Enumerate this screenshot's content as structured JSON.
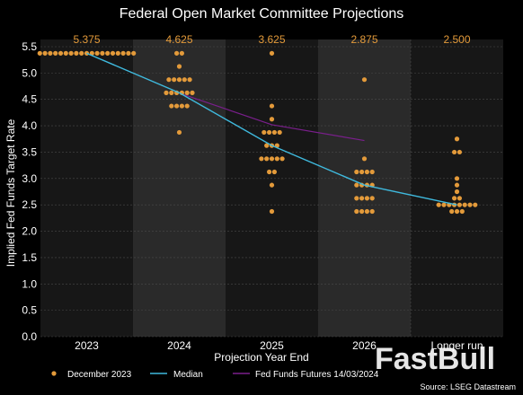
{
  "colors": {
    "background": "#000000",
    "band_dark": "#171717",
    "band_light": "#2a2a2a",
    "grid": "#4a4a4a",
    "dots": "#e39a3a",
    "median": "#3fb9dd",
    "futures": "#7a1f8c",
    "text": "#ffffff"
  },
  "watermark": "FastBull",
  "source": "Source: LSEG Datastream",
  "chart_data": {
    "type": "scatter",
    "title": "Federal Open Market Committee Projections",
    "xlabel": "Projection Year End",
    "ylabel": "Implied Fed Funds Target Rate",
    "categories": [
      "2023",
      "2024",
      "2025",
      "2026",
      "Longer run"
    ],
    "ylim": [
      0,
      5.5
    ],
    "yticks": [
      "0.0",
      "0.5",
      "1.0",
      "1.5",
      "2.0",
      "2.5",
      "3.0",
      "3.5",
      "4.0",
      "4.5",
      "5.0",
      "5.5"
    ],
    "grid": true,
    "median_labels": [
      "5.375",
      "4.625",
      "3.625",
      "2.875",
      "2.500"
    ],
    "dots": [
      {
        "category": "2023",
        "rates": [
          [
            5.375,
            19
          ]
        ]
      },
      {
        "category": "2024",
        "rates": [
          [
            5.375,
            2
          ],
          [
            5.125,
            1
          ],
          [
            4.875,
            5
          ],
          [
            4.625,
            6
          ],
          [
            4.375,
            4
          ],
          [
            3.875,
            1
          ]
        ]
      },
      {
        "category": "2025",
        "rates": [
          [
            5.375,
            1
          ],
          [
            4.375,
            1
          ],
          [
            4.125,
            1
          ],
          [
            3.875,
            4
          ],
          [
            3.625,
            3
          ],
          [
            3.375,
            5
          ],
          [
            3.125,
            2
          ],
          [
            2.875,
            1
          ],
          [
            2.375,
            1
          ]
        ]
      },
      {
        "category": "2026",
        "rates": [
          [
            4.875,
            1
          ],
          [
            3.375,
            1
          ],
          [
            3.125,
            4
          ],
          [
            2.875,
            4
          ],
          [
            2.625,
            4
          ],
          [
            2.375,
            4
          ]
        ]
      },
      {
        "category": "Longer run",
        "rates": [
          [
            3.75,
            1
          ],
          [
            3.5,
            2
          ],
          [
            3.0,
            1
          ],
          [
            2.875,
            1
          ],
          [
            2.75,
            1
          ],
          [
            2.625,
            2
          ],
          [
            2.5,
            8
          ],
          [
            2.375,
            3
          ]
        ]
      }
    ],
    "series": [
      {
        "name": "December 2023",
        "type": "dots"
      },
      {
        "name": "Median",
        "type": "line",
        "points": [
          {
            "x": "2023",
            "y": 5.375
          },
          {
            "x": "2024",
            "y": 4.625
          },
          {
            "x": "2025",
            "y": 3.625
          },
          {
            "x": "2026",
            "y": 2.875
          },
          {
            "x": "Longer run",
            "y": 2.5
          }
        ]
      },
      {
        "name": "Fed Funds Futures 14/03/2024",
        "type": "line",
        "points": [
          {
            "x": "2024",
            "y": 4.62
          },
          {
            "x": "2025",
            "y": 4.02
          },
          {
            "x": "2026",
            "y": 3.72
          }
        ]
      }
    ],
    "legend_position": "bottom"
  }
}
